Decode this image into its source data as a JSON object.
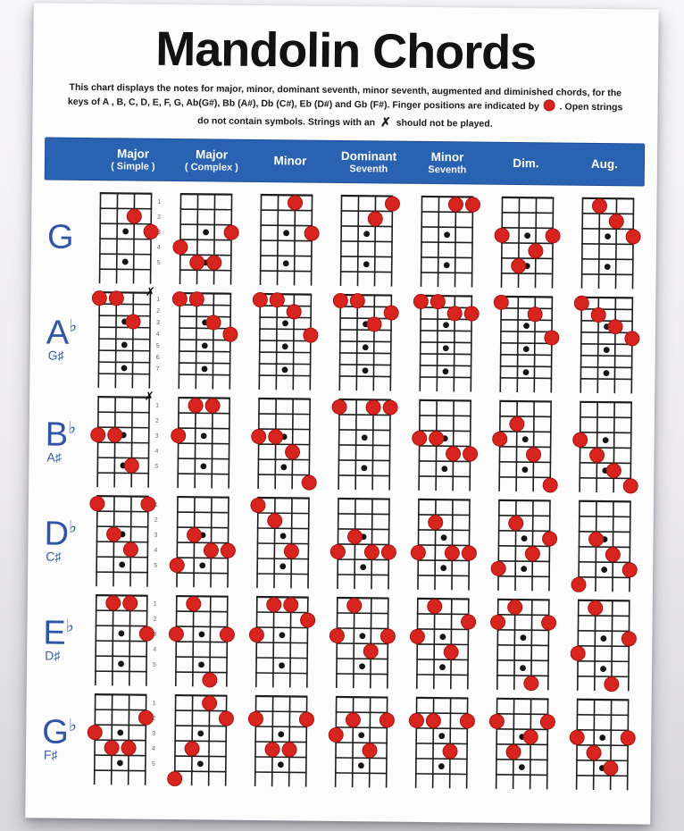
{
  "poster": {
    "title": "Mandolin Chords",
    "intro": {
      "part1": "This chart displays the notes for major, minor, dominant seventh, minor seventh, augmented and diminished chords, for the keys of  A , B, C, D, E, F, G, Ab(G#), Bb (A#), Db (C#), Eb (D#) and Gb (F#). Finger positions are indicated by",
      "part2": ". Open strings do not contain symbols. Strings with an",
      "part3": "should not be played."
    }
  },
  "icons": {
    "finger_dot": "red-circle",
    "muted_glyph": "✗"
  },
  "colors": {
    "header_bg": "#2a62b2",
    "label_blue": "#2e55a6",
    "dot_red": "#d8241f",
    "dot_red_edge": "#a8140f",
    "grid_black": "#1d1d1d",
    "marker_black": "#141414",
    "fret_label_gray": "#666666"
  },
  "columns": [
    {
      "line1": "Major",
      "line2": "( Simple )"
    },
    {
      "line1": "Major",
      "line2": "( Complex )"
    },
    {
      "line1": "Minor",
      "line2": ""
    },
    {
      "line1": "Dominant",
      "line2": "Seventh"
    },
    {
      "line1": "Minor",
      "line2": "Seventh"
    },
    {
      "line1": "Dim.",
      "line2": ""
    },
    {
      "line1": "Aug.",
      "line2": ""
    }
  ],
  "chart": {
    "strings": 4,
    "rows": [
      {
        "label": "G",
        "flat": "",
        "sub": "",
        "frets": 5,
        "fret_labels": [
          1,
          2,
          3,
          4,
          5
        ],
        "markers": [
          3,
          5
        ],
        "chords": [
          {
            "dots": [
              [
                3,
                2
              ],
              [
                4,
                3
              ]
            ],
            "muted": []
          },
          {
            "dots": [
              [
                4,
                3
              ],
              [
                1,
                4
              ],
              [
                2,
                5
              ],
              [
                3,
                5
              ]
            ],
            "muted": []
          },
          {
            "dots": [
              [
                3,
                1
              ],
              [
                4,
                3
              ]
            ],
            "muted": []
          },
          {
            "dots": [
              [
                4,
                1
              ],
              [
                3,
                2
              ]
            ],
            "muted": []
          },
          {
            "dots": [
              [
                3,
                1
              ],
              [
                4,
                1
              ]
            ],
            "muted": []
          },
          {
            "dots": [
              [
                1,
                3
              ],
              [
                4,
                3
              ],
              [
                3,
                4
              ],
              [
                2,
                5
              ]
            ],
            "muted": []
          },
          {
            "dots": [
              [
                2,
                1
              ],
              [
                3,
                2
              ],
              [
                4,
                3
              ]
            ],
            "muted": []
          }
        ]
      },
      {
        "label": "A",
        "flat": "♭",
        "sub": "G♯",
        "frets": 7,
        "fret_labels": [
          1,
          2,
          3,
          4,
          5,
          6,
          7
        ],
        "markers": [
          3,
          5,
          7
        ],
        "chords": [
          {
            "dots": [
              [
                1,
                1
              ],
              [
                2,
                1
              ],
              [
                3,
                3
              ]
            ],
            "muted": [
              4
            ]
          },
          {
            "dots": [
              [
                1,
                1
              ],
              [
                2,
                1
              ],
              [
                3,
                3
              ],
              [
                4,
                4
              ]
            ],
            "muted": []
          },
          {
            "dots": [
              [
                1,
                1
              ],
              [
                2,
                1
              ],
              [
                3,
                2
              ],
              [
                4,
                4
              ]
            ],
            "muted": []
          },
          {
            "dots": [
              [
                1,
                1
              ],
              [
                2,
                1
              ],
              [
                4,
                2
              ],
              [
                3,
                3
              ]
            ],
            "muted": []
          },
          {
            "dots": [
              [
                1,
                1
              ],
              [
                2,
                1
              ],
              [
                3,
                2
              ],
              [
                4,
                2
              ]
            ],
            "muted": []
          },
          {
            "dots": [
              [
                1,
                1
              ],
              [
                3,
                2
              ],
              [
                4,
                4
              ]
            ],
            "muted": []
          },
          {
            "dots": [
              [
                1,
                1
              ],
              [
                2,
                2
              ],
              [
                3,
                3
              ],
              [
                4,
                4
              ]
            ],
            "muted": []
          }
        ]
      },
      {
        "label": "B",
        "flat": "♭",
        "sub": "A♯",
        "frets": 5,
        "fret_labels": [
          1,
          2,
          3,
          4,
          5
        ],
        "markers": [
          3,
          5
        ],
        "chords": [
          {
            "dots": [
              [
                1,
                3
              ],
              [
                2,
                3
              ],
              [
                3,
                5
              ]
            ],
            "muted": [
              4
            ]
          },
          {
            "dots": [
              [
                2,
                1
              ],
              [
                3,
                1
              ],
              [
                1,
                3
              ]
            ],
            "muted": []
          },
          {
            "dots": [
              [
                1,
                3
              ],
              [
                2,
                3
              ],
              [
                3,
                4
              ],
              [
                4,
                6
              ]
            ],
            "muted": []
          },
          {
            "dots": [
              [
                1,
                1
              ],
              [
                3,
                1
              ],
              [
                4,
                1
              ]
            ],
            "muted": []
          },
          {
            "dots": [
              [
                1,
                3
              ],
              [
                2,
                3
              ],
              [
                3,
                4
              ],
              [
                4,
                4
              ]
            ],
            "muted": []
          },
          {
            "dots": [
              [
                2,
                2
              ],
              [
                1,
                3
              ],
              [
                3,
                4
              ],
              [
                4,
                6
              ]
            ],
            "muted": []
          },
          {
            "dots": [
              [
                1,
                3
              ],
              [
                2,
                4
              ],
              [
                3,
                5
              ],
              [
                4,
                6
              ]
            ],
            "muted": []
          }
        ]
      },
      {
        "label": "D",
        "flat": "♭",
        "sub": "C♯",
        "frets": 5,
        "fret_labels": [
          1,
          2,
          3,
          4,
          5
        ],
        "markers": [
          3,
          5
        ],
        "chords": [
          {
            "dots": [
              [
                1,
                1
              ],
              [
                4,
                1
              ],
              [
                2,
                3
              ],
              [
                3,
                4
              ]
            ],
            "muted": []
          },
          {
            "dots": [
              [
                2,
                3
              ],
              [
                3,
                4
              ],
              [
                4,
                4
              ],
              [
                1,
                5
              ]
            ],
            "muted": []
          },
          {
            "dots": [
              [
                1,
                1
              ],
              [
                2,
                2
              ],
              [
                3,
                4
              ]
            ],
            "muted": []
          },
          {
            "dots": [
              [
                2,
                3
              ],
              [
                1,
                4
              ],
              [
                3,
                4
              ],
              [
                4,
                4
              ]
            ],
            "muted": []
          },
          {
            "dots": [
              [
                2,
                2
              ],
              [
                1,
                4
              ],
              [
                3,
                4
              ],
              [
                4,
                4
              ]
            ],
            "muted": []
          },
          {
            "dots": [
              [
                2,
                2
              ],
              [
                4,
                3
              ],
              [
                3,
                4
              ],
              [
                1,
                5
              ]
            ],
            "muted": []
          },
          {
            "dots": [
              [
                2,
                3
              ],
              [
                3,
                4
              ],
              [
                4,
                5
              ],
              [
                1,
                6
              ]
            ],
            "muted": []
          }
        ]
      },
      {
        "label": "E",
        "flat": "♭",
        "sub": "D♯",
        "frets": 5,
        "fret_labels": [
          1,
          2,
          3,
          4,
          5
        ],
        "markers": [
          3,
          5
        ],
        "chords": [
          {
            "dots": [
              [
                2,
                1
              ],
              [
                3,
                1
              ],
              [
                4,
                3
              ]
            ],
            "muted": []
          },
          {
            "dots": [
              [
                2,
                1
              ],
              [
                1,
                3
              ],
              [
                4,
                3
              ],
              [
                3,
                6
              ]
            ],
            "muted": []
          },
          {
            "dots": [
              [
                2,
                1
              ],
              [
                3,
                1
              ],
              [
                4,
                2
              ],
              [
                1,
                3
              ]
            ],
            "muted": []
          },
          {
            "dots": [
              [
                2,
                1
              ],
              [
                1,
                3
              ],
              [
                4,
                3
              ],
              [
                3,
                4
              ]
            ],
            "muted": []
          },
          {
            "dots": [
              [
                2,
                1
              ],
              [
                4,
                2
              ],
              [
                1,
                3
              ],
              [
                3,
                4
              ]
            ],
            "muted": []
          },
          {
            "dots": [
              [
                2,
                1
              ],
              [
                1,
                2
              ],
              [
                4,
                2
              ],
              [
                3,
                6
              ]
            ],
            "muted": []
          },
          {
            "dots": [
              [
                2,
                1
              ],
              [
                4,
                3
              ],
              [
                1,
                4
              ],
              [
                3,
                6
              ]
            ],
            "muted": []
          }
        ]
      },
      {
        "label": "G",
        "flat": "♭",
        "sub": "F♯",
        "frets": 5,
        "fret_labels": [
          1,
          2,
          3,
          4,
          5
        ],
        "markers": [
          3,
          5
        ],
        "chords": [
          {
            "dots": [
              [
                4,
                2
              ],
              [
                1,
                3
              ],
              [
                2,
                4
              ],
              [
                3,
                4
              ]
            ],
            "muted": []
          },
          {
            "dots": [
              [
                3,
                1
              ],
              [
                4,
                2
              ],
              [
                2,
                4
              ],
              [
                1,
                6
              ]
            ],
            "muted": []
          },
          {
            "dots": [
              [
                1,
                2
              ],
              [
                4,
                2
              ],
              [
                2,
                4
              ],
              [
                3,
                4
              ]
            ],
            "muted": []
          },
          {
            "dots": [
              [
                2,
                2
              ],
              [
                4,
                2
              ],
              [
                1,
                3
              ],
              [
                3,
                4
              ]
            ],
            "muted": []
          },
          {
            "dots": [
              [
                1,
                2
              ],
              [
                2,
                2
              ],
              [
                4,
                2
              ],
              [
                3,
                4
              ]
            ],
            "muted": []
          },
          {
            "dots": [
              [
                1,
                2
              ],
              [
                4,
                2
              ],
              [
                3,
                3
              ],
              [
                2,
                4
              ]
            ],
            "muted": []
          },
          {
            "dots": [
              [
                1,
                3
              ],
              [
                4,
                3
              ],
              [
                2,
                4
              ],
              [
                3,
                5
              ]
            ],
            "muted": []
          }
        ]
      }
    ]
  }
}
